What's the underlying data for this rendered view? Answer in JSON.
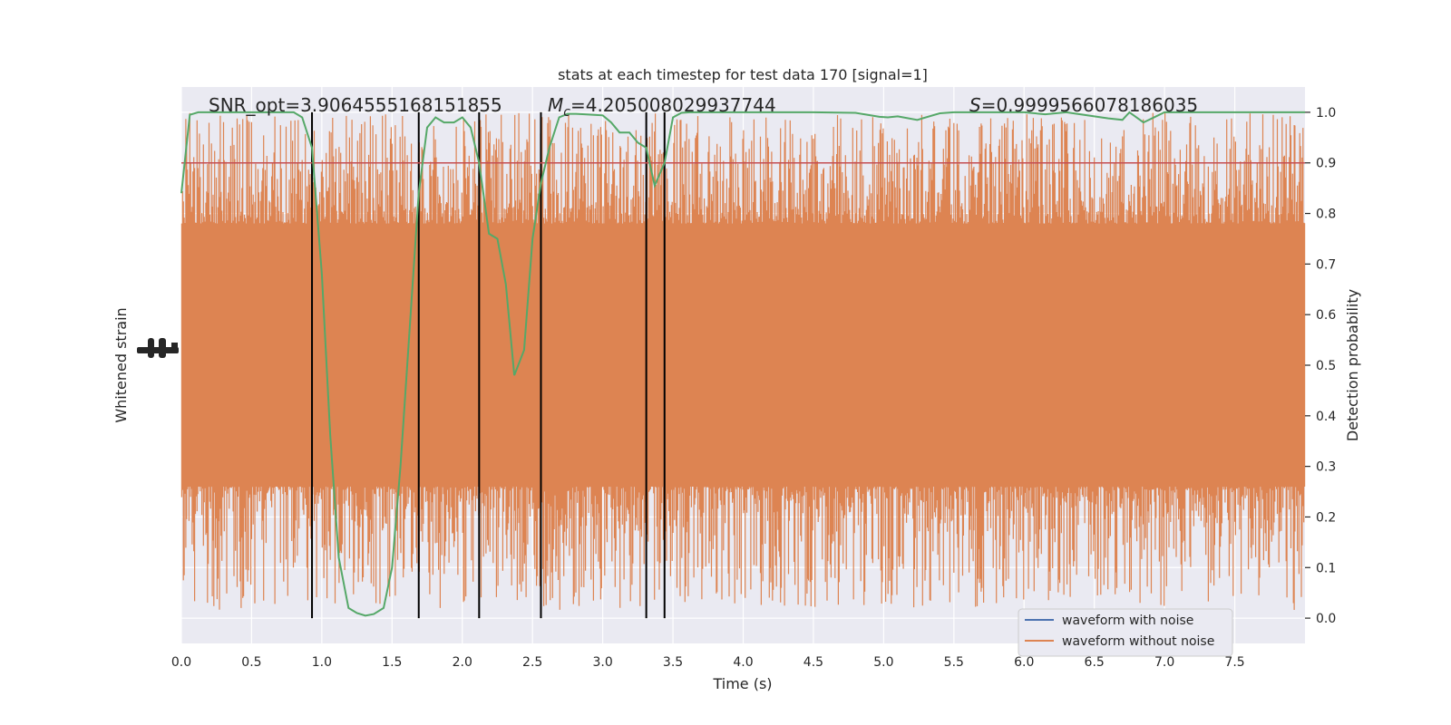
{
  "chart_data": {
    "type": "line",
    "title": "stats at each timestep for test data 170 [signal=1]",
    "xlabel": "Time (s)",
    "ylabel_left": "Whitened strain",
    "ylabel_right": "Detection probability",
    "xlim": [
      0,
      8
    ],
    "ylim_right": [
      -0.05,
      1.05
    ],
    "x_ticks": [
      "0.0",
      "0.5",
      "1.0",
      "1.5",
      "2.0",
      "2.5",
      "3.0",
      "3.5",
      "4.0",
      "4.5",
      "5.0",
      "5.5",
      "6.0",
      "6.5",
      "7.0",
      "7.5"
    ],
    "y_ticks_right": [
      "0.0",
      "0.1",
      "0.2",
      "0.3",
      "0.4",
      "0.5",
      "0.6",
      "0.7",
      "0.8",
      "0.9",
      "1.0"
    ],
    "grid": true,
    "legend_position": "lower-right",
    "annotations": {
      "snr_label": "SNR_opt=3.9064555168151855",
      "mc_symbol": "M",
      "mc_subscript": "c",
      "mc_value": "=4.205008029937744",
      "s_symbol": "S",
      "s_value": "=0.9999566078186035"
    },
    "threshold": 0.9,
    "vertical_lines": [
      0.93,
      1.69,
      2.12,
      2.56,
      3.31,
      3.44
    ],
    "series": [
      {
        "name": "waveform with noise",
        "color": "#4c72b0"
      },
      {
        "name": "waveform without noise",
        "color": "#dd8452"
      },
      {
        "color": "#55a868",
        "x": [
          0.0,
          0.06,
          0.12,
          0.2,
          0.3,
          0.4,
          0.5,
          0.6,
          0.7,
          0.8,
          0.86,
          0.93,
          1.0,
          1.06,
          1.12,
          1.19,
          1.25,
          1.31,
          1.37,
          1.44,
          1.5,
          1.56,
          1.62,
          1.69,
          1.75,
          1.81,
          1.87,
          1.94,
          2.0,
          2.06,
          2.12,
          2.19,
          2.25,
          2.31,
          2.37,
          2.44,
          2.5,
          2.56,
          2.62,
          2.69,
          2.75,
          2.81,
          2.87,
          2.94,
          3.0,
          3.06,
          3.12,
          3.19,
          3.25,
          3.31,
          3.37,
          3.44,
          3.5,
          3.56,
          3.62,
          3.69,
          3.75,
          3.81,
          3.87,
          3.94,
          4.0,
          4.5,
          4.8,
          4.97,
          5.03,
          5.1,
          5.24,
          5.4,
          5.5,
          5.6,
          5.8,
          6.0,
          6.15,
          6.3,
          6.4,
          6.55,
          6.6,
          6.7,
          6.75,
          6.85,
          7.0,
          7.5,
          8.0
        ],
        "y": [
          0.84,
          0.995,
          1.0,
          1.0,
          1.0,
          1.0,
          1.0,
          1.0,
          1.0,
          1.0,
          0.99,
          0.93,
          0.68,
          0.36,
          0.12,
          0.02,
          0.01,
          0.005,
          0.008,
          0.02,
          0.1,
          0.3,
          0.55,
          0.84,
          0.97,
          0.99,
          0.98,
          0.98,
          0.99,
          0.97,
          0.9,
          0.76,
          0.75,
          0.66,
          0.48,
          0.53,
          0.75,
          0.86,
          0.93,
          0.99,
          0.997,
          0.997,
          0.996,
          0.995,
          0.994,
          0.98,
          0.96,
          0.96,
          0.94,
          0.93,
          0.855,
          0.9,
          0.99,
          0.999,
          1.0,
          1.0,
          1.0,
          1.0,
          1.0,
          1.0,
          1.0,
          1.0,
          0.999,
          0.991,
          0.99,
          0.992,
          0.985,
          0.998,
          1.0,
          1.0,
          1.0,
          1.0,
          0.996,
          1.0,
          0.996,
          0.99,
          0.988,
          0.985,
          1.0,
          0.98,
          1.0,
          1.0,
          1.0
        ]
      }
    ]
  }
}
